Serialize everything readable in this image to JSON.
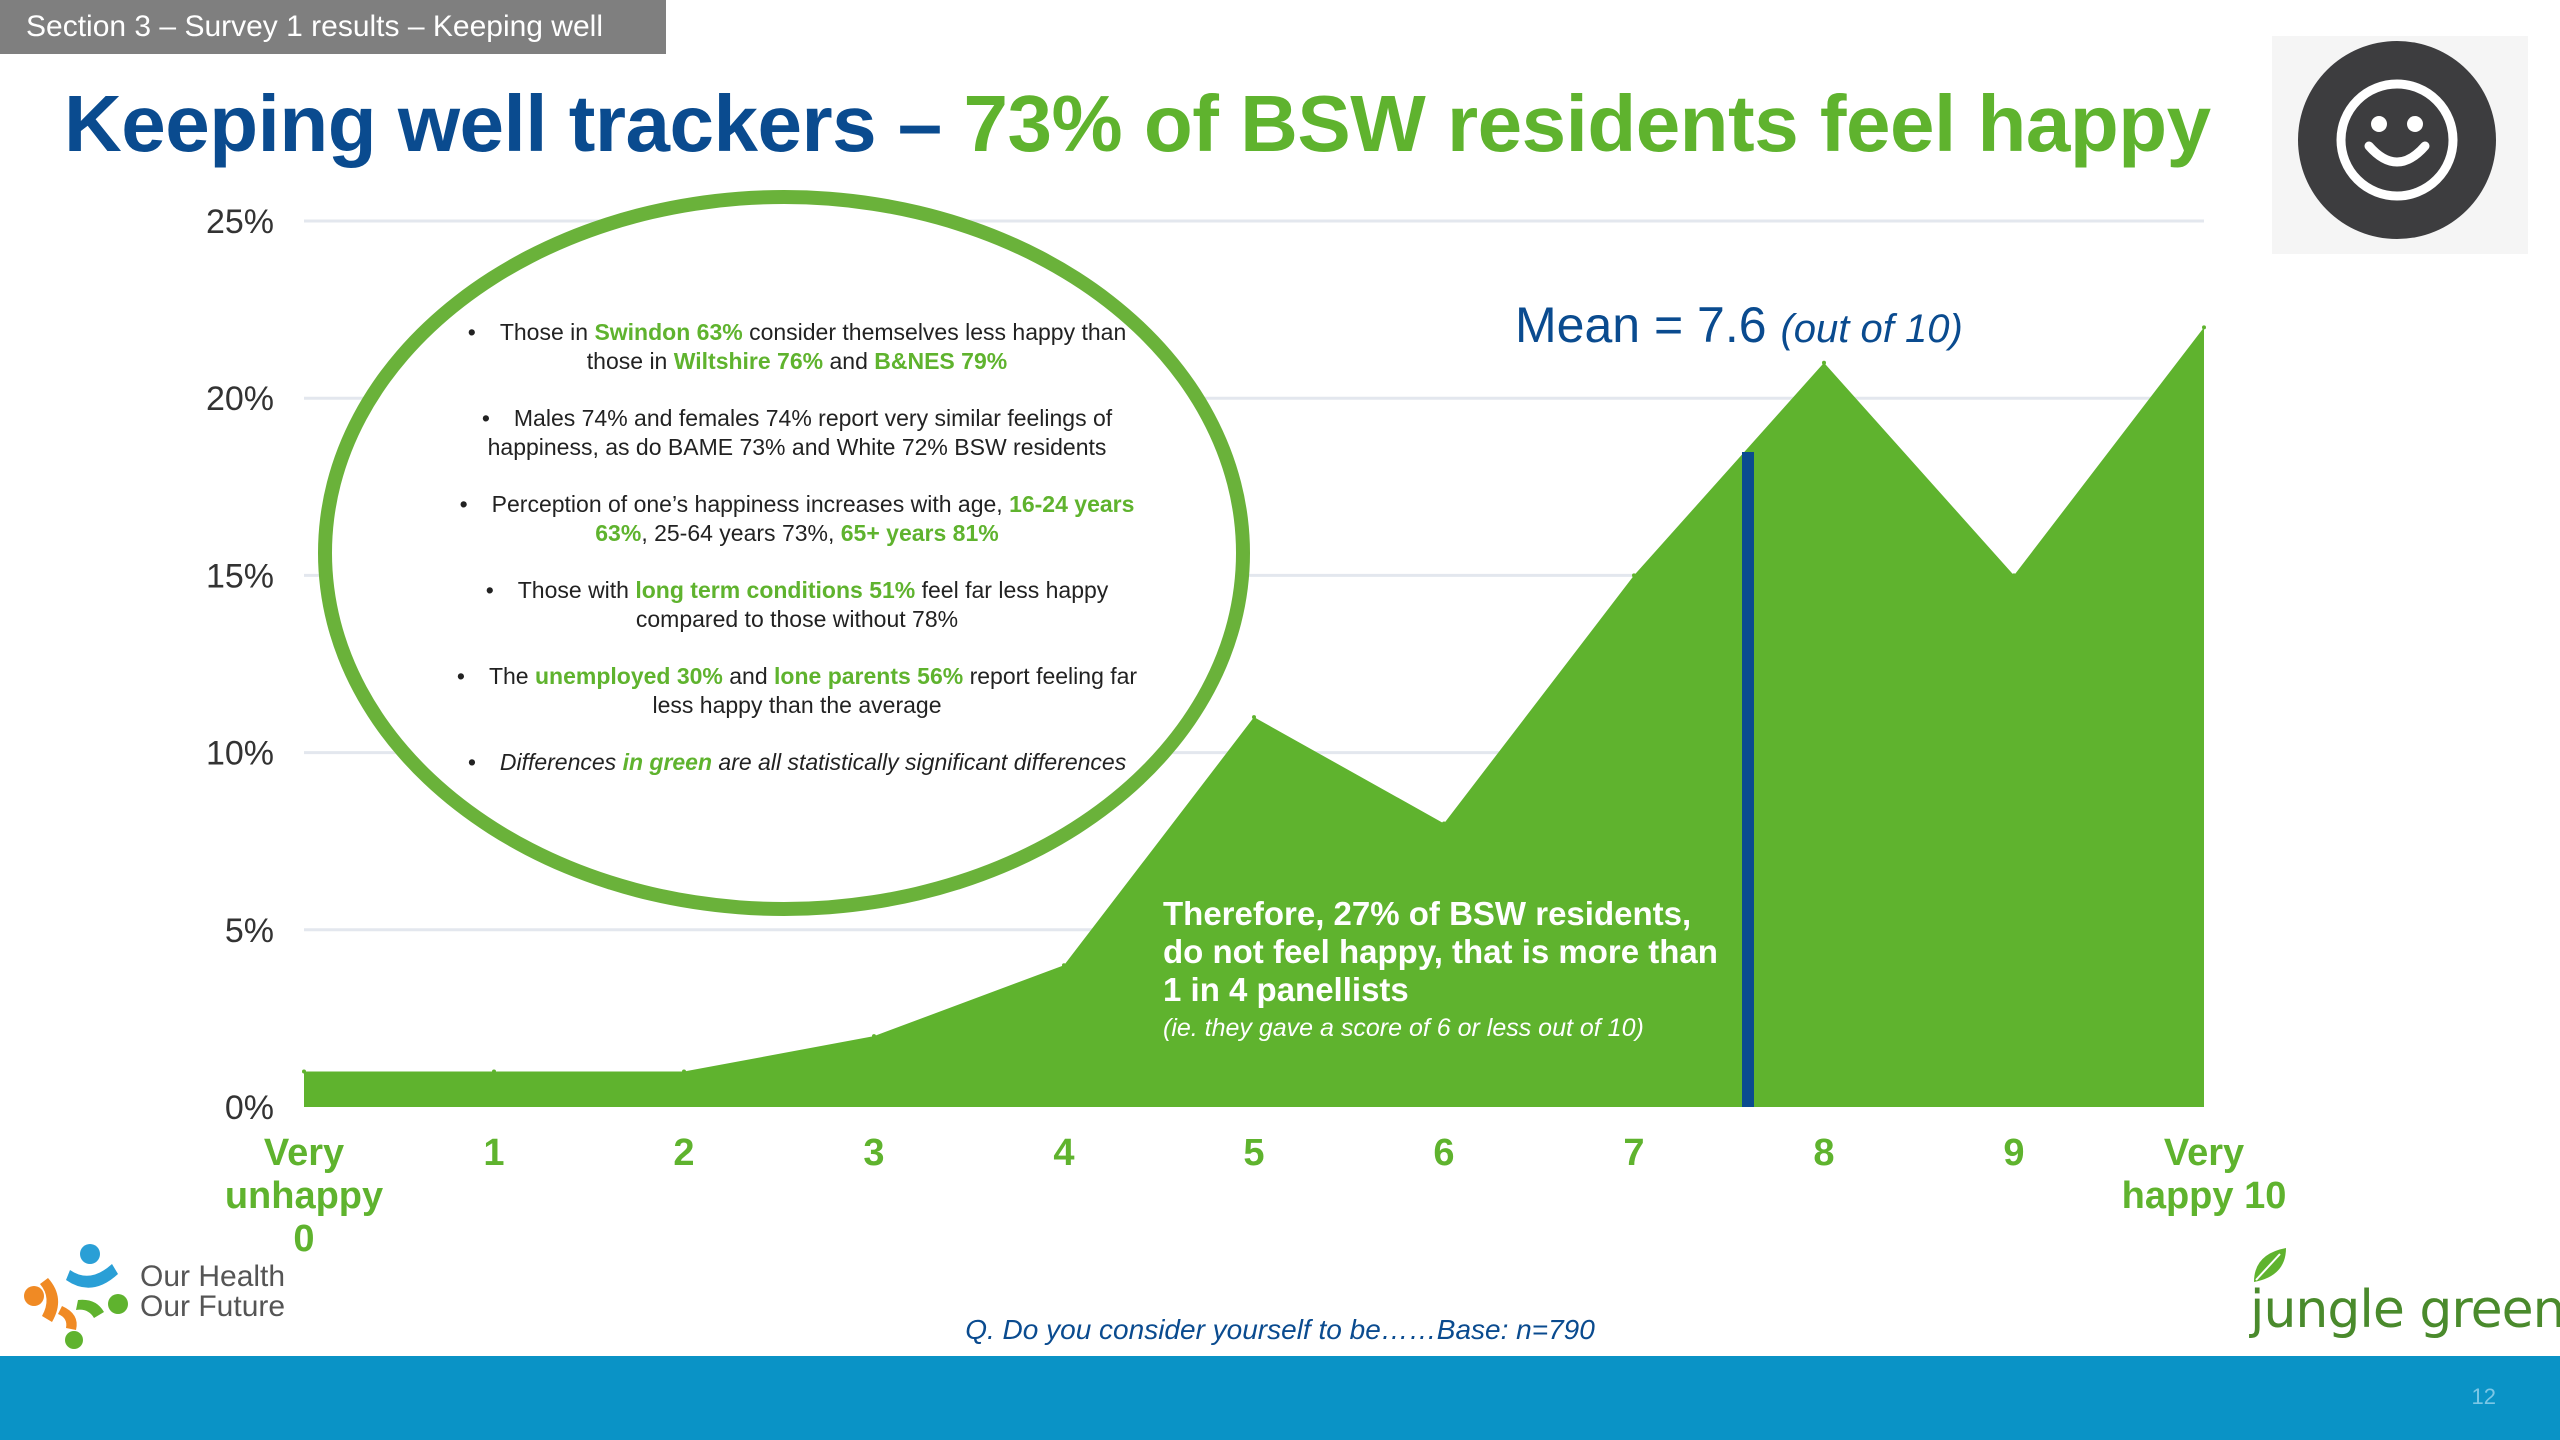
{
  "section_label": "Section 3 – Survey 1 results – Keeping well",
  "title": {
    "main": "Keeping well trackers – ",
    "highlight": "73% of BSW residents feel happy"
  },
  "icons": {
    "smiley": "smiley-face-icon",
    "ohof_logo": "our-health-our-future-logo",
    "jungle_green_logo": "jungle-green-leaf-logo"
  },
  "colors": {
    "area": "#5fb32e",
    "title_blue": "#0a4b8f",
    "accent_green": "#5fb32e",
    "mean_line": "#0a4b8f",
    "gridline": "#e3e7ee",
    "bottom_bar": "#0a93c6"
  },
  "chart_data": {
    "type": "area",
    "x": [
      "Very unhappy 0",
      "1",
      "2",
      "3",
      "4",
      "5",
      "6",
      "7",
      "8",
      "9",
      "Very happy 10"
    ],
    "x_tick_lines": [
      [
        "Very",
        "unhappy",
        "0"
      ],
      [
        "1"
      ],
      [
        "2"
      ],
      [
        "3"
      ],
      [
        "4"
      ],
      [
        "5"
      ],
      [
        "6"
      ],
      [
        "7"
      ],
      [
        "8"
      ],
      [
        "9"
      ],
      [
        "Very",
        "happy 10"
      ]
    ],
    "values": [
      1,
      1,
      1,
      2,
      4,
      11,
      8,
      15,
      21,
      15,
      22
    ],
    "ylim": [
      0,
      25
    ],
    "yticks": [
      0,
      5,
      10,
      15,
      20,
      25
    ],
    "ytick_labels": [
      "0%",
      "5%",
      "10%",
      "15%",
      "20%",
      "25%"
    ],
    "grid": true,
    "mean": 7.6,
    "mean_label": "Mean = 7.6",
    "mean_label_sub": "(out of 10)"
  },
  "callout": {
    "text": "Therefore, 27% of BSW residents, do not feel happy, that is more than 1 in 4 panellists",
    "note": "(ie. they gave a score of 6 or less out of 10)"
  },
  "bullets": {
    "b1": {
      "t1": "Those in ",
      "g1": "Swindon 63%",
      "t2": " consider themselves less happy than those in ",
      "g2": "Wiltshire 76%",
      "t3": " and ",
      "g3": "B&NES 79%"
    },
    "b2": {
      "t1": "Males 74% and females 74% report very similar feelings of happiness, as do BAME 73% and White 72% BSW residents"
    },
    "b3": {
      "t1": "Perception of one’s happiness increases with age, ",
      "g1": "16-24 years 63%",
      "t2": ", 25-64 years 73%, ",
      "g2": "65+ years 81%"
    },
    "b4": {
      "t1": "Those with ",
      "g1": "long term conditions 51%",
      "t2": " feel far less happy compared to those without 78%"
    },
    "b5": {
      "t1": "The ",
      "g1": "unemployed 30%",
      "t2": " and ",
      "g2": "lone parents 56%",
      "t3": " report feeling far less happy than the average"
    },
    "b6": {
      "t1": "Differences ",
      "g1": "in green",
      "t2": " are all statistically significant differences"
    }
  },
  "footer_question": "Q. Do you consider yourself to be……Base: n=790",
  "logo_ohof": {
    "line1": "Our Health",
    "line2": "Our Future"
  },
  "logo_jg": "jungle green",
  "page_number": "12"
}
